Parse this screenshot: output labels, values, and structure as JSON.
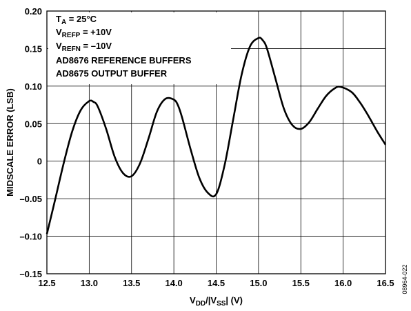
{
  "chart_data": {
    "type": "line",
    "title": "",
    "xlabel": {
      "parts": [
        {
          "text": "V",
          "sub": false
        },
        {
          "text": "DD",
          "sub": true
        },
        {
          "text": "/|V",
          "sub": false
        },
        {
          "text": "SS",
          "sub": true
        },
        {
          "text": "| (V)",
          "sub": false
        }
      ]
    },
    "ylabel": "MIDSCALE ERROR (LSB)",
    "xlim": [
      12.5,
      16.5
    ],
    "ylim": [
      -0.15,
      0.2
    ],
    "grid": true,
    "x_ticks": [
      {
        "value": 12.5,
        "label": "12.5"
      },
      {
        "value": 13.0,
        "label": "13.0"
      },
      {
        "value": 13.5,
        "label": "13.5"
      },
      {
        "value": 14.0,
        "label": "14.0"
      },
      {
        "value": 14.5,
        "label": "14.5"
      },
      {
        "value": 15.0,
        "label": "15.0"
      },
      {
        "value": 15.5,
        "label": "15.5"
      },
      {
        "value": 16.0,
        "label": "16.0"
      },
      {
        "value": 16.5,
        "label": "16.5"
      }
    ],
    "y_ticks": [
      {
        "value": 0.2,
        "label": "0.20"
      },
      {
        "value": 0.15,
        "label": "0.15"
      },
      {
        "value": 0.1,
        "label": "0.10"
      },
      {
        "value": 0.05,
        "label": "0.05"
      },
      {
        "value": 0,
        "label": "0"
      },
      {
        "value": -0.05,
        "label": "–0.05"
      },
      {
        "value": -0.1,
        "label": "–0.10"
      },
      {
        "value": -0.15,
        "label": "–0.15"
      }
    ],
    "series": [
      {
        "color": "#000000",
        "x": [
          12.5,
          12.6,
          12.7,
          12.8,
          12.9,
          13.0,
          13.05,
          13.1,
          13.2,
          13.3,
          13.4,
          13.5,
          13.6,
          13.7,
          13.8,
          13.9,
          14.0,
          14.05,
          14.1,
          14.2,
          14.3,
          14.4,
          14.5,
          14.6,
          14.7,
          14.8,
          14.9,
          15.0,
          15.05,
          15.1,
          15.2,
          15.3,
          15.4,
          15.5,
          15.6,
          15.7,
          15.8,
          15.9,
          15.97,
          16.1,
          16.2,
          16.3,
          16.4,
          16.5
        ],
        "y": [
          -0.097,
          -0.05,
          -0.002,
          0.04,
          0.068,
          0.08,
          0.079,
          0.073,
          0.043,
          0.006,
          -0.016,
          -0.02,
          -0.003,
          0.03,
          0.066,
          0.083,
          0.082,
          0.074,
          0.057,
          0.015,
          -0.022,
          -0.042,
          -0.044,
          -0.005,
          0.055,
          0.115,
          0.153,
          0.164,
          0.161,
          0.15,
          0.11,
          0.07,
          0.048,
          0.043,
          0.052,
          0.07,
          0.087,
          0.097,
          0.099,
          0.092,
          0.078,
          0.06,
          0.04,
          0.022
        ]
      }
    ]
  },
  "annotations": [
    {
      "parts": [
        {
          "text": "T",
          "sub": false
        },
        {
          "text": "A",
          "sub": true
        },
        {
          "text": " = 25°C",
          "sub": false
        }
      ]
    },
    {
      "parts": [
        {
          "text": "V",
          "sub": false
        },
        {
          "text": "REFP",
          "sub": true
        },
        {
          "text": " = +10V",
          "sub": false
        }
      ]
    },
    {
      "parts": [
        {
          "text": "V",
          "sub": false
        },
        {
          "text": "REFN",
          "sub": true
        },
        {
          "text": " = –10V",
          "sub": false
        }
      ]
    },
    {
      "parts": [
        {
          "text": "AD8676 REFERENCE BUFFERS",
          "sub": false
        }
      ]
    },
    {
      "parts": [
        {
          "text": "AD8675 OUTPUT BUFFER",
          "sub": false
        }
      ]
    }
  ],
  "figure_id": "08964-022"
}
